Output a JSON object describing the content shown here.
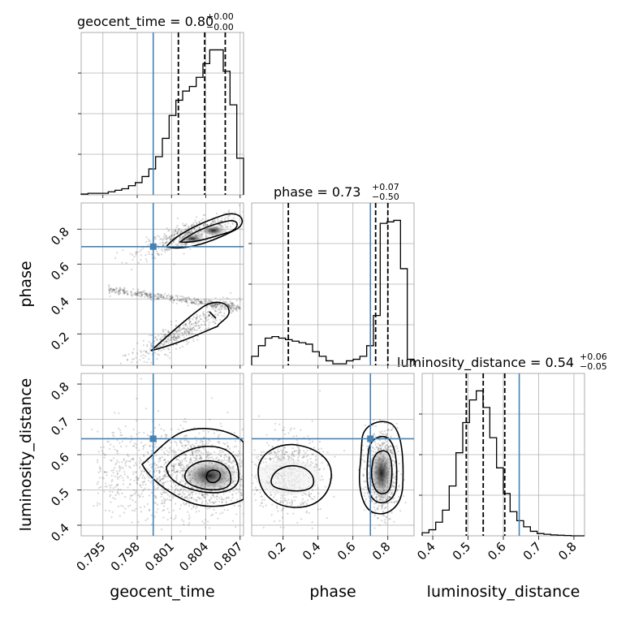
{
  "chart_data": {
    "type": "corner",
    "parameters": [
      "geocent_time",
      "phase",
      "luminosity_distance"
    ],
    "truths": {
      "geocent_time": 0.7994,
      "phase": 0.7,
      "luminosity_distance": 0.645
    },
    "titles": [
      {
        "param": "geocent_time",
        "text": "geocent_time = 0.80",
        "sup": "+0.00",
        "sub": "−0.00"
      },
      {
        "param": "phase",
        "text": "phase = 0.73",
        "sup": "+0.07",
        "sub": "−0.50"
      },
      {
        "param": "luminosity_distance",
        "text": "luminosity_distance = 0.54",
        "sup": "+0.06",
        "sub": "−0.05"
      }
    ],
    "ranges": {
      "geocent_time": [
        0.7931,
        0.8073
      ],
      "phase": [
        0.02,
        0.95
      ],
      "luminosity_distance": [
        0.37,
        0.83
      ]
    },
    "ticks": {
      "geocent_time": [
        "0.795",
        "0.798",
        "0.801",
        "0.804",
        "0.807"
      ],
      "phase": [
        "0.2",
        "0.4",
        "0.6",
        "0.8"
      ],
      "luminosity_distance": [
        "0.4",
        "0.5",
        "0.6",
        "0.7",
        "0.8"
      ]
    },
    "tick_values": {
      "geocent_time": [
        0.795,
        0.798,
        0.801,
        0.804,
        0.807
      ],
      "phase": [
        0.2,
        0.4,
        0.6,
        0.8
      ],
      "luminosity_distance": [
        0.4,
        0.5,
        0.6,
        0.7,
        0.8
      ]
    },
    "quantiles": {
      "geocent_time": [
        0.8016,
        0.8039,
        0.8057
      ],
      "phase": [
        0.23,
        0.73,
        0.8
      ],
      "luminosity_distance": [
        0.495,
        0.543,
        0.604
      ]
    },
    "histograms": {
      "geocent_time": [
        0.5,
        1,
        1,
        1,
        2,
        3,
        4,
        6,
        8,
        12,
        17,
        25,
        37,
        52,
        62,
        68,
        71,
        77,
        86,
        95,
        95,
        81,
        59,
        24
      ],
      "phase": [
        6,
        13,
        18,
        19,
        18,
        17,
        16,
        15,
        14,
        9,
        6,
        3,
        1,
        1,
        3,
        4,
        6,
        13,
        33,
        94,
        95,
        96,
        64,
        4
      ],
      "luminosity_distance": [
        2,
        4,
        9,
        17,
        33,
        55,
        75,
        90,
        96,
        85,
        65,
        45,
        28,
        16,
        10,
        6,
        3,
        1.5,
        1,
        0.6,
        0.4,
        0.2,
        0,
        0
      ]
    },
    "xlabel_bottom": [
      "geocent_time",
      "phase",
      "luminosity_distance"
    ],
    "ylabel_left": [
      "phase",
      "luminosity_distance"
    ],
    "grid": true
  }
}
